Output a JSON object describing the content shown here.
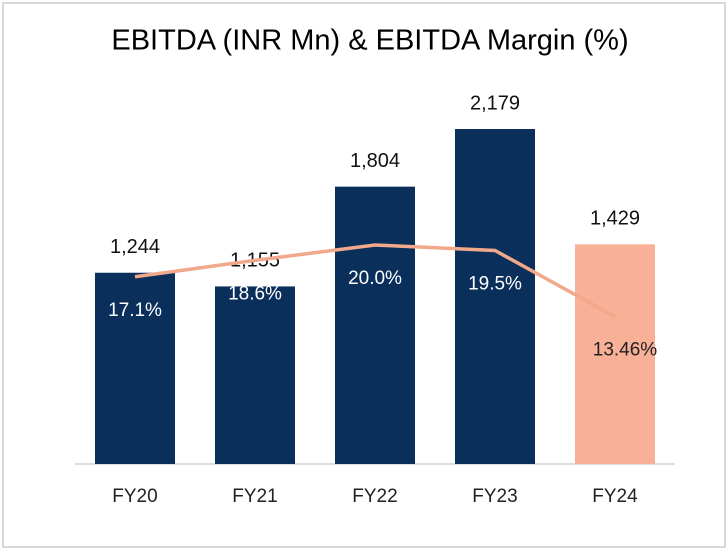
{
  "chart_data": {
    "type": "bar_line",
    "title": "EBITDA (INR Mn) & EBITDA Margin (%)",
    "categories": [
      "FY20",
      "FY21",
      "FY22",
      "FY23",
      "FY24"
    ],
    "series": [
      {
        "name": "EBITDA (INR Mn)",
        "type": "bar",
        "colors": [
          "#0b2f5b",
          "#0b2f5b",
          "#0b2f5b",
          "#0b2f5b",
          "#f8b096"
        ],
        "values": [
          1244,
          1155,
          1804,
          2179,
          1429
        ],
        "value_labels": [
          "1,244",
          "1,155",
          "1,804",
          "2,179",
          "1,429"
        ]
      },
      {
        "name": "EBITDA Margin (%)",
        "type": "line",
        "color": "#f2a88b",
        "values": [
          17.1,
          18.6,
          20.0,
          19.5,
          13.46
        ],
        "value_labels": [
          "17.1%",
          "18.6%",
          "20.0%",
          "19.5%",
          "13.46%"
        ]
      }
    ]
  }
}
